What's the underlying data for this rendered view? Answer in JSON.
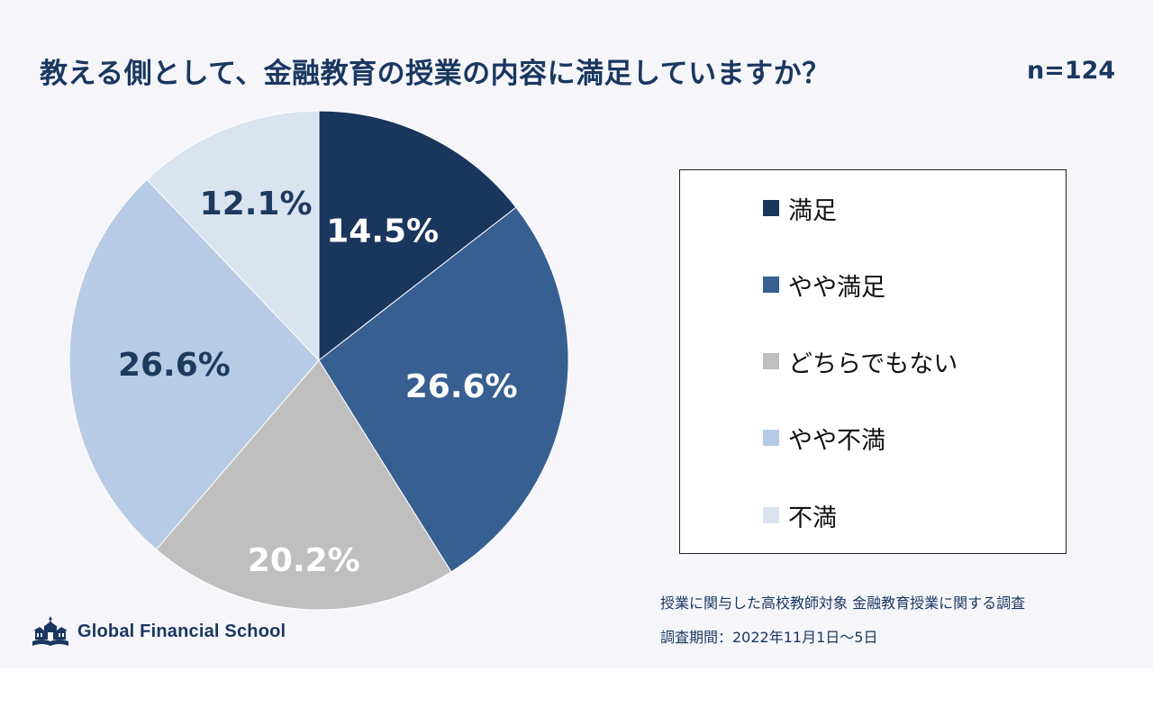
{
  "title": "教える側として、金融教育の授業の内容に満足していますか？",
  "sample_size": "n=124",
  "chart_data": {
    "type": "pie",
    "categories": [
      "満足",
      "やや満足",
      "どちらでもない",
      "やや不満",
      "不満"
    ],
    "values": [
      14.5,
      26.6,
      20.2,
      26.6,
      12.1
    ],
    "labels": [
      "14.5%",
      "26.6%",
      "20.2%",
      "26.6%",
      "12.1%"
    ],
    "colors": [
      "#1b365d",
      "#375f91",
      "#bfbfbf",
      "#b8cbe4",
      "#dae3f0"
    ],
    "label_colors": [
      "#ffffff",
      "#ffffff",
      "#ffffff",
      "#1e3a5f",
      "#1e3a5f"
    ],
    "start": "12 o'clock, clockwise",
    "legend_position": "right"
  },
  "legend": {
    "items": [
      "満足",
      "やや満足",
      "どちらでもない",
      "やや不満",
      "不満"
    ]
  },
  "notes": {
    "survey": "授業に関与した高校教師対象 金融教育授業に関する調査",
    "period": "調査期間：2022年11月1日〜5日"
  },
  "logo": {
    "text": "Global Financial School",
    "icon": "school-building-icon"
  }
}
